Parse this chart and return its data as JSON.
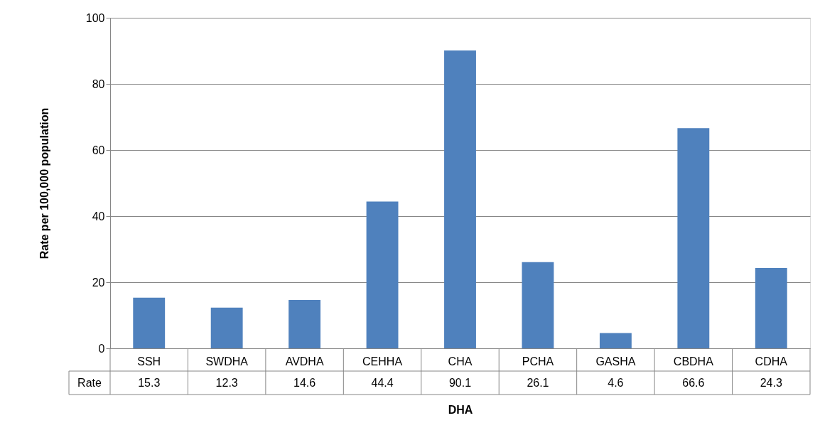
{
  "chart_data": {
    "type": "bar",
    "xlabel": "DHA",
    "ylabel": "Rate per 100,000 population",
    "categories": [
      "SSH",
      "SWDHA",
      "AVDHA",
      "CEHHA",
      "CHA",
      "PCHA",
      "GASHA",
      "CBDHA",
      "CDHA"
    ],
    "series": [
      {
        "name": "Rate",
        "color": "#4f81bd",
        "values": [
          15.3,
          12.3,
          14.6,
          44.4,
          90.1,
          26.1,
          4.6,
          66.6,
          24.3
        ]
      }
    ],
    "ylim": [
      0,
      100
    ],
    "yticks": [
      0,
      20,
      40,
      60,
      80,
      100
    ],
    "grid": "y",
    "legend": false,
    "data_labels": true
  }
}
